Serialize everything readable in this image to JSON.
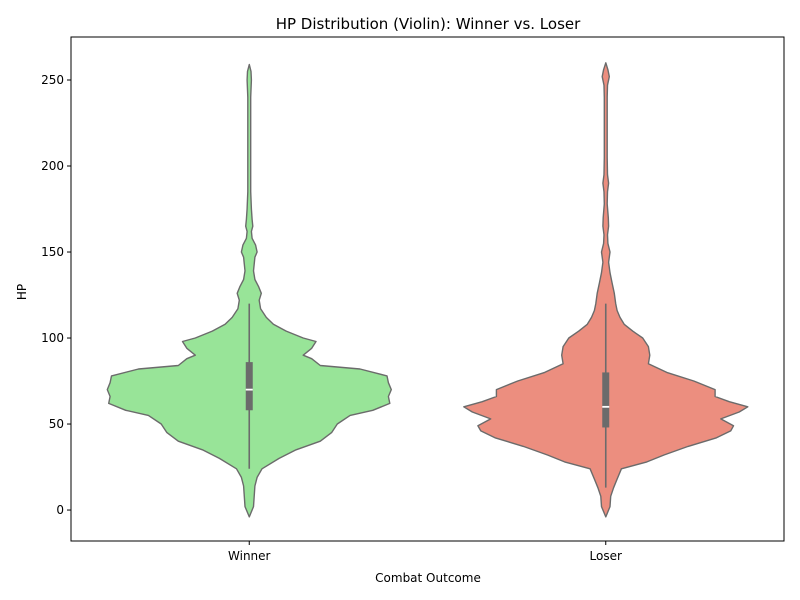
{
  "chart_data": {
    "type": "violin",
    "title": "HP Distribution (Violin): Winner vs. Loser",
    "xlabel": "Combat Outcome",
    "ylabel": "HP",
    "categories": [
      "Winner",
      "Loser"
    ],
    "ylim": [
      -18,
      275
    ],
    "yticks": [
      "0",
      "50",
      "100",
      "150",
      "200",
      "250"
    ],
    "grid": false,
    "series": [
      {
        "category": "Winner",
        "color": "#98e498",
        "box": {
          "q1": 58,
          "median": 70,
          "q3": 86,
          "whisker_low": 24,
          "whisker_high": 120
        },
        "density_profile": [
          [
            -4,
            0.0
          ],
          [
            2,
            0.03
          ],
          [
            8,
            0.035
          ],
          [
            14,
            0.04
          ],
          [
            19,
            0.055
          ],
          [
            24,
            0.09
          ],
          [
            30,
            0.21
          ],
          [
            35,
            0.33
          ],
          [
            40,
            0.5
          ],
          [
            45,
            0.58
          ],
          [
            50,
            0.62
          ],
          [
            55,
            0.71
          ],
          [
            58,
            0.87
          ],
          [
            62,
            0.99
          ],
          [
            66,
            0.98
          ],
          [
            70,
            1.0
          ],
          [
            74,
            0.98
          ],
          [
            78,
            0.97
          ],
          [
            82,
            0.78
          ],
          [
            84,
            0.5
          ],
          [
            88,
            0.44
          ],
          [
            90,
            0.38
          ],
          [
            94,
            0.44
          ],
          [
            98,
            0.47
          ],
          [
            100,
            0.38
          ],
          [
            104,
            0.26
          ],
          [
            108,
            0.17
          ],
          [
            112,
            0.12
          ],
          [
            117,
            0.08
          ],
          [
            122,
            0.07
          ],
          [
            126,
            0.085
          ],
          [
            130,
            0.065
          ],
          [
            134,
            0.04
          ],
          [
            139,
            0.03
          ],
          [
            143,
            0.035
          ],
          [
            147,
            0.04
          ],
          [
            150,
            0.055
          ],
          [
            154,
            0.045
          ],
          [
            158,
            0.02
          ],
          [
            162,
            0.015
          ],
          [
            165,
            0.025
          ],
          [
            169,
            0.02
          ],
          [
            175,
            0.015
          ],
          [
            185,
            0.01
          ],
          [
            200,
            0.01
          ],
          [
            220,
            0.01
          ],
          [
            240,
            0.01
          ],
          [
            250,
            0.015
          ],
          [
            255,
            0.012
          ],
          [
            259,
            0.0
          ]
        ]
      },
      {
        "category": "Loser",
        "color": "#ec8e7f",
        "box": {
          "q1": 48,
          "median": 60,
          "q3": 80,
          "whisker_low": 13,
          "whisker_high": 120
        },
        "density_profile": [
          [
            -4,
            0.0
          ],
          [
            2,
            0.03
          ],
          [
            8,
            0.035
          ],
          [
            13,
            0.055
          ],
          [
            18,
            0.08
          ],
          [
            24,
            0.11
          ],
          [
            28,
            0.29
          ],
          [
            32,
            0.41
          ],
          [
            37,
            0.58
          ],
          [
            42,
            0.78
          ],
          [
            46,
            0.88
          ],
          [
            49,
            0.9
          ],
          [
            53,
            0.81
          ],
          [
            57,
            0.94
          ],
          [
            60,
            1.0
          ],
          [
            63,
            0.87
          ],
          [
            66,
            0.77
          ],
          [
            70,
            0.77
          ],
          [
            75,
            0.62
          ],
          [
            80,
            0.43
          ],
          [
            85,
            0.3
          ],
          [
            90,
            0.31
          ],
          [
            95,
            0.3
          ],
          [
            100,
            0.26
          ],
          [
            104,
            0.19
          ],
          [
            108,
            0.13
          ],
          [
            112,
            0.1
          ],
          [
            116,
            0.08
          ],
          [
            120,
            0.07
          ],
          [
            126,
            0.06
          ],
          [
            132,
            0.045
          ],
          [
            138,
            0.03
          ],
          [
            144,
            0.02
          ],
          [
            150,
            0.03
          ],
          [
            155,
            0.015
          ],
          [
            160,
            0.012
          ],
          [
            165,
            0.02
          ],
          [
            170,
            0.018
          ],
          [
            178,
            0.01
          ],
          [
            185,
            0.012
          ],
          [
            190,
            0.02
          ],
          [
            195,
            0.012
          ],
          [
            205,
            0.01
          ],
          [
            220,
            0.01
          ],
          [
            240,
            0.01
          ],
          [
            247,
            0.012
          ],
          [
            252,
            0.025
          ],
          [
            256,
            0.015
          ],
          [
            260,
            0.0
          ]
        ]
      }
    ]
  }
}
